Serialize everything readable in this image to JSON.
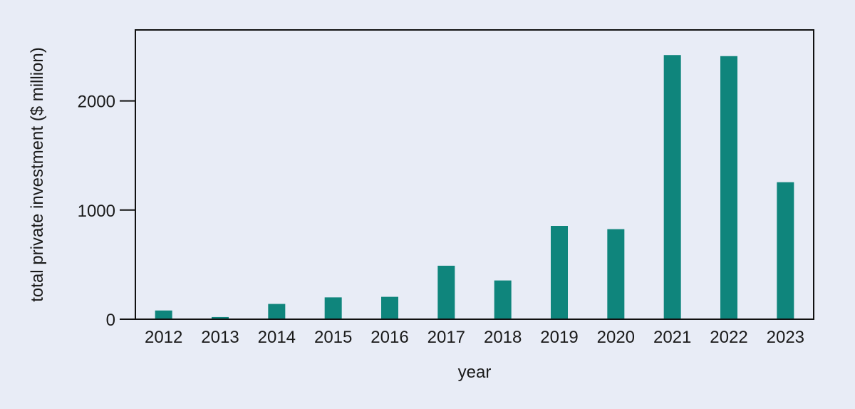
{
  "chart_data": {
    "type": "bar",
    "categories": [
      "2012",
      "2013",
      "2014",
      "2015",
      "2016",
      "2017",
      "2018",
      "2019",
      "2020",
      "2021",
      "2022",
      "2023"
    ],
    "values": [
      80,
      20,
      140,
      200,
      205,
      490,
      355,
      855,
      825,
      2420,
      2410,
      1255
    ],
    "title": "",
    "xlabel": "year",
    "ylabel": "total private investment ($ million)",
    "ylim": [
      0,
      2650
    ],
    "yticks": [
      0,
      1000,
      2000
    ],
    "grid": false,
    "colors": {
      "bar": "#0f857c",
      "background": "#e8ecf6",
      "axis": "#111111"
    }
  }
}
